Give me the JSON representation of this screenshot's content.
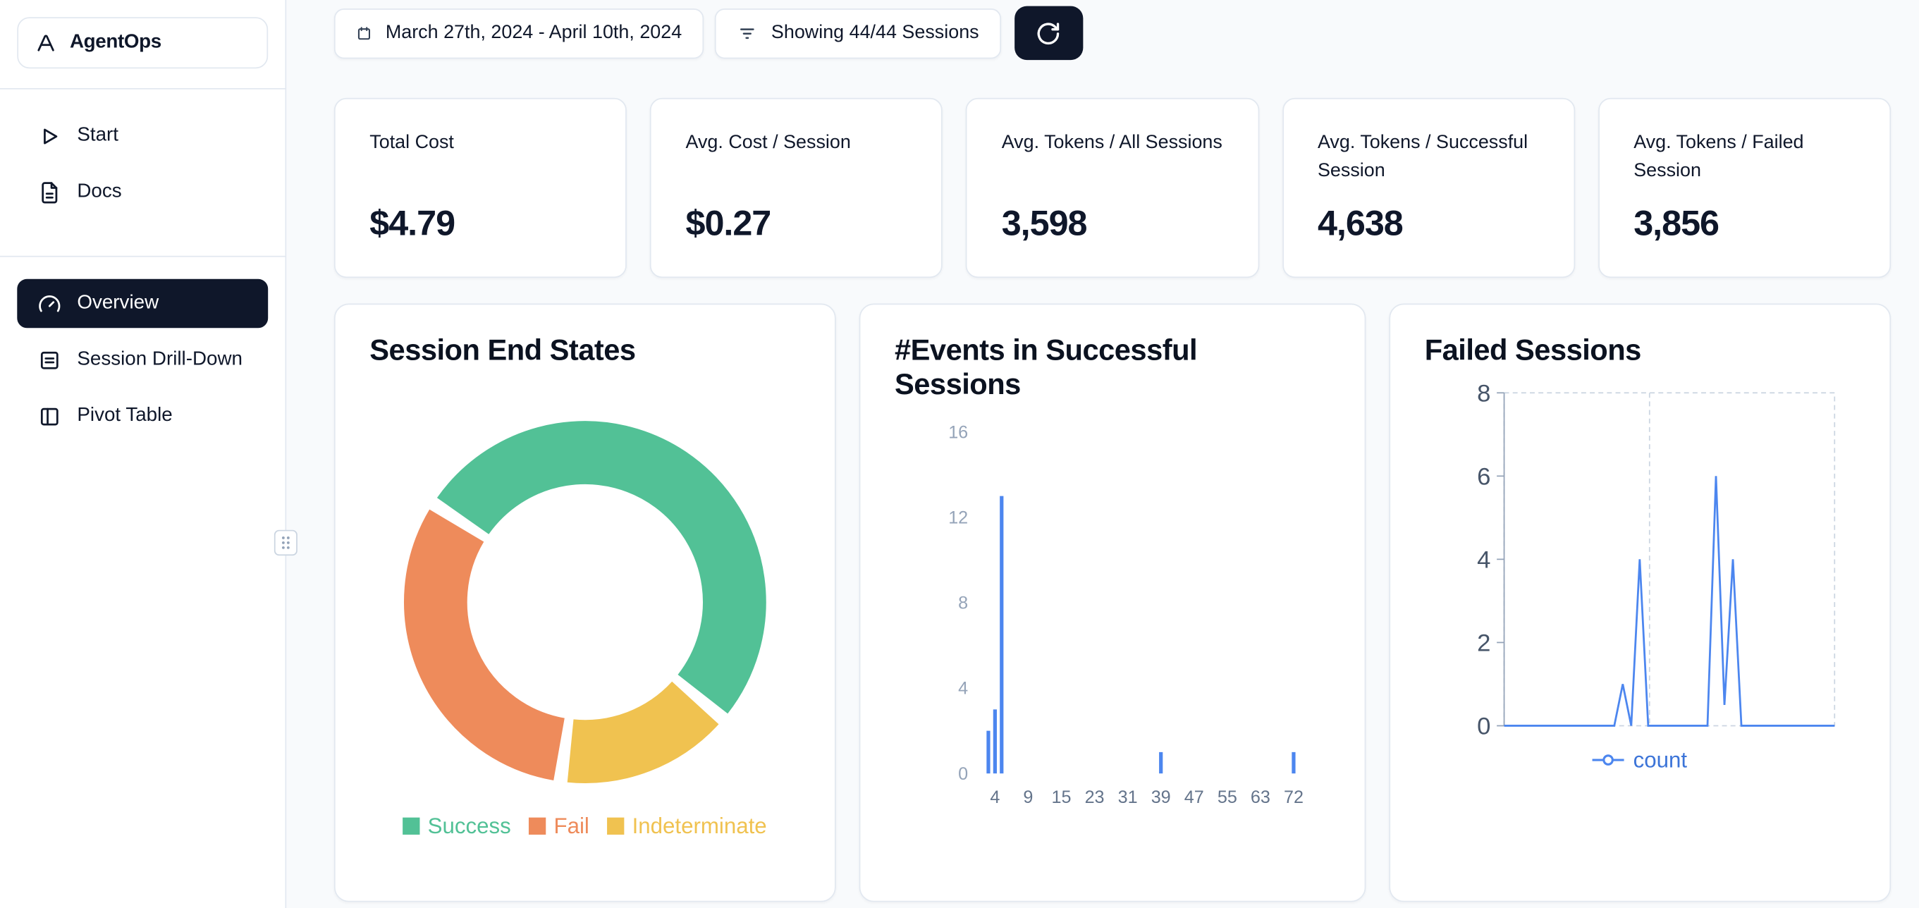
{
  "app_title": "AgentOps",
  "sidebar": {
    "logo_label": "AgentOps",
    "nav_top": [
      {
        "label": "Start",
        "icon": "play-icon"
      },
      {
        "label": "Docs",
        "icon": "document-icon"
      }
    ],
    "nav_main": [
      {
        "label": "Overview",
        "icon": "gauge-icon",
        "active": true
      },
      {
        "label": "Session Drill-Down",
        "icon": "rows-icon",
        "active": false
      },
      {
        "label": "Pivot Table",
        "icon": "columns-icon",
        "active": false
      }
    ]
  },
  "topbar": {
    "date_range": "March 27th, 2024 - April 10th, 2024",
    "sessions_filter": "Showing 44/44 Sessions",
    "refresh_icon": "refresh-icon"
  },
  "stats": [
    {
      "title": "Total Cost",
      "value": "$4.79"
    },
    {
      "title": "Avg. Cost / Session",
      "value": "$0.27"
    },
    {
      "title": "Avg. Tokens / All Sessions",
      "value": "3,598"
    },
    {
      "title": "Avg. Tokens / Successful Session",
      "value": "4,638"
    },
    {
      "title": "Avg. Tokens / Failed Session",
      "value": "3,856"
    }
  ],
  "chart_data": [
    {
      "type": "pie",
      "title": "Session End States",
      "donut": true,
      "labels": [
        "Success",
        "Fail",
        "Indeterminate"
      ],
      "values": [
        52,
        32,
        16
      ],
      "units": "percent-estimated-from-arc-angles",
      "colors": [
        "#52c196",
        "#ee8b5b",
        "#f0c250"
      ],
      "start_angle": -57,
      "clockwise_order": [
        0,
        2,
        1
      ],
      "legend_position": "bottom"
    },
    {
      "type": "bar",
      "title": "#Events in Successful Sessions",
      "xlabel": "",
      "ylabel": "",
      "ylim": [
        0,
        16
      ],
      "y_ticks": [
        0,
        4,
        8,
        12,
        16
      ],
      "x_ticks": [
        4,
        9,
        15,
        23,
        31,
        39,
        47,
        55,
        63,
        72
      ],
      "bars": [
        {
          "x": 3,
          "count": 2
        },
        {
          "x": 4,
          "count": 3
        },
        {
          "x": 5,
          "count": 13
        },
        {
          "x": 39,
          "count": 1
        },
        {
          "x": 72,
          "count": 1
        }
      ],
      "bar_color": "#4c86ef",
      "grid": "off"
    },
    {
      "type": "line",
      "title": "Failed Sessions",
      "ylim": [
        0,
        8
      ],
      "y_ticks": [
        0,
        2,
        4,
        6,
        8
      ],
      "series": [
        {
          "name": "count",
          "values": [
            0,
            0,
            0,
            0,
            0,
            0,
            0,
            0,
            0,
            0,
            0,
            0,
            0,
            0,
            1,
            0,
            4,
            0,
            0,
            0,
            0,
            0,
            0,
            0,
            0,
            6,
            0.5,
            4,
            0,
            0,
            0,
            0,
            0,
            0,
            0,
            0,
            0,
            0,
            0,
            0
          ]
        }
      ],
      "line_color": "#4c86ef",
      "grid": "dashed-border",
      "legend_position": "bottom"
    }
  ],
  "colors": {
    "accent_dark": "#0f172a",
    "background": "#f8fafc",
    "card_border": "#e2e8f0",
    "success": "#52c196",
    "fail": "#ee8b5b",
    "indeterminate": "#f0c250",
    "chart_blue": "#4c86ef",
    "tick_gray": "#94a3b8"
  }
}
